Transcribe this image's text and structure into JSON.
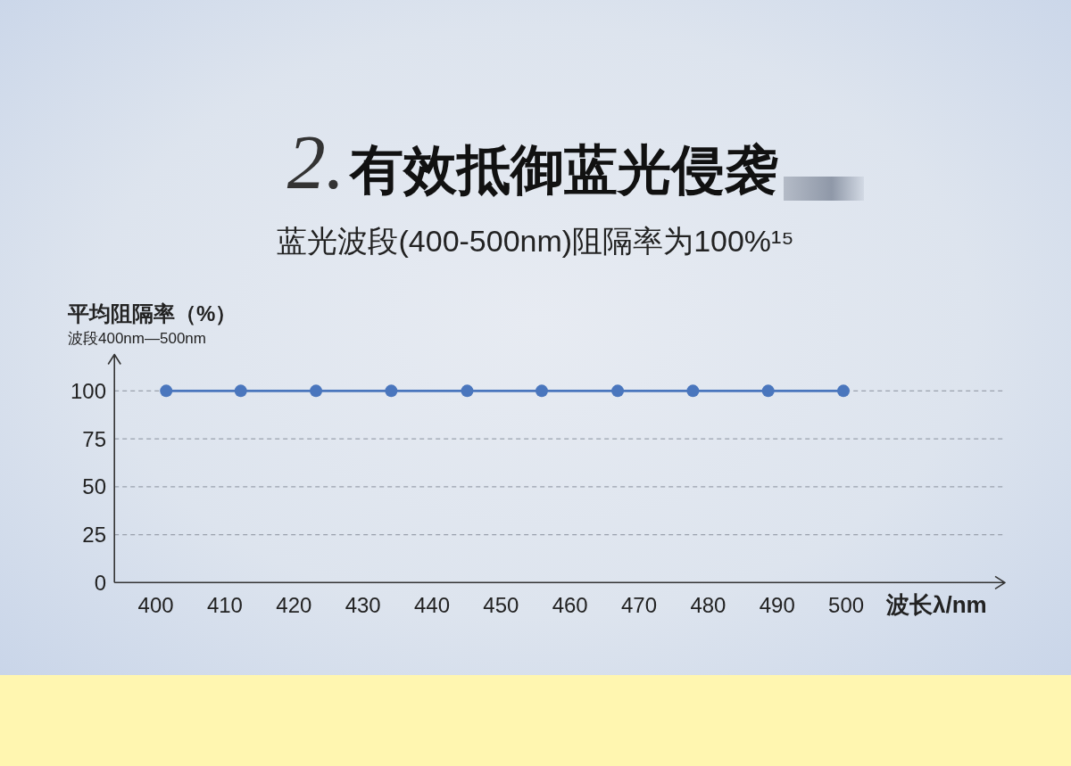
{
  "chart_data": {
    "type": "line",
    "title": "2.有效抵御蓝光侵袭",
    "subtitle": "蓝光波段(400-500nm)阻隔率为100%¹⁵",
    "ylabel": "平均阻隔率（%）",
    "annotations": [
      "波段400nm—500nm"
    ],
    "xlabel": "波长λ/nm",
    "x": [
      401.5,
      412.3,
      423.2,
      434.1,
      445.1,
      455.9,
      466.9,
      477.8,
      488.7,
      499.6
    ],
    "series": [
      {
        "color": "#4a76bd",
        "values": [
          100,
          100,
          100,
          100,
          100,
          100,
          100,
          100,
          100,
          100
        ]
      }
    ],
    "xlim": [
      394,
      523
    ],
    "xticks": [
      400,
      410,
      420,
      430,
      440,
      450,
      460,
      470,
      480,
      490,
      500
    ],
    "ylim": [
      0,
      119
    ],
    "yticks": [
      0,
      25,
      50,
      75,
      100
    ],
    "grid": "y",
    "marker": "circle",
    "line_style": "solid"
  }
}
